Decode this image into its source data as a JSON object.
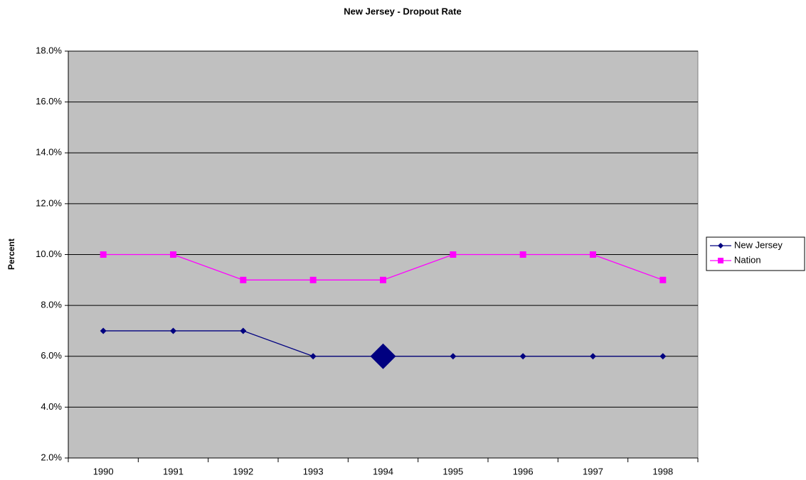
{
  "chart_data": {
    "type": "line",
    "title": "New Jersey - Dropout Rate",
    "y_label": "Percent",
    "categories": [
      "1990",
      "1991",
      "1992",
      "1993",
      "1994",
      "1995",
      "1996",
      "1997",
      "1998"
    ],
    "series": [
      {
        "name": "New Jersey",
        "color": "#000080",
        "marker": "diamond",
        "highlight_index": 4,
        "values": [
          7,
          7,
          7,
          6,
          6,
          6,
          6,
          6,
          6
        ]
      },
      {
        "name": "Nation",
        "color": "#ff00ff",
        "marker": "square",
        "values": [
          10,
          10,
          9,
          9,
          9,
          10,
          10,
          10,
          9
        ]
      }
    ],
    "ylim": [
      2,
      18
    ],
    "yticks": [
      {
        "value": 2,
        "label": "2.0%"
      },
      {
        "value": 4,
        "label": "4.0%"
      },
      {
        "value": 6,
        "label": "6.0%"
      },
      {
        "value": 8,
        "label": "8.0%"
      },
      {
        "value": 10,
        "label": "10.0%"
      },
      {
        "value": 12,
        "label": "12.0%"
      },
      {
        "value": 14,
        "label": "14.0%"
      },
      {
        "value": 16,
        "label": "16.0%"
      },
      {
        "value": 18,
        "label": "18.0%"
      }
    ],
    "grid": true,
    "legend": "right"
  }
}
